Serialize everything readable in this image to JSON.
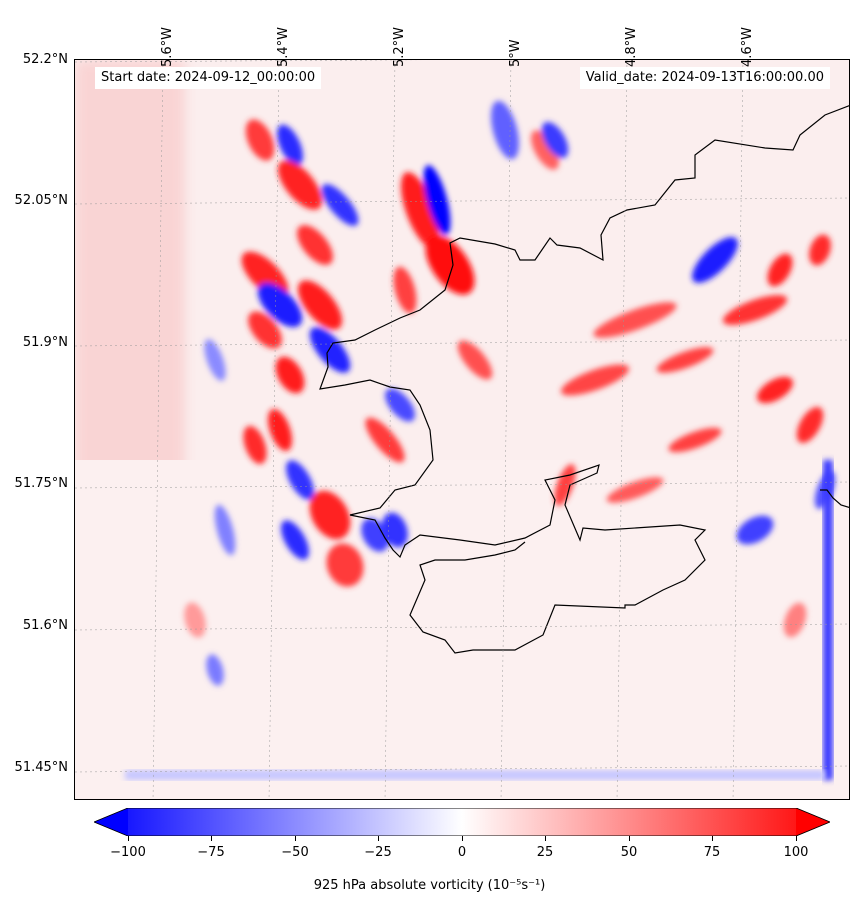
{
  "map": {
    "start_date": "Start date: 2024-09-12_00:00:00",
    "valid_date": "Valid_date: 2024-09-13T16:00:00.00",
    "lat_labels": [
      "52.2°N",
      "52.05°N",
      "51.9°N",
      "51.75°N",
      "51.6°N",
      "51.45°N"
    ],
    "lon_labels": [
      "5.6°W",
      "5.4°W",
      "5.2°W",
      "5°W",
      "4.8°W",
      "4.6°W"
    ],
    "colormap": {
      "low": "#0000ff",
      "mid": "#ffffff",
      "high": "#ff0000"
    }
  },
  "colorbar": {
    "ticks": [
      "−100",
      "−75",
      "−50",
      "−25",
      "0",
      "25",
      "50",
      "75",
      "100"
    ],
    "range": [
      -100,
      100
    ],
    "label": "925 hPa absolute vorticity (10⁻⁵s⁻¹)"
  }
}
